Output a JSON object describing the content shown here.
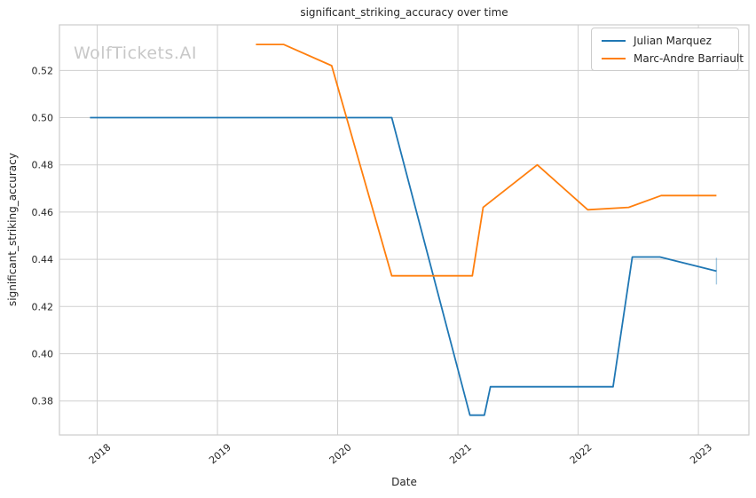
{
  "watermark": "WolfTickets.AI",
  "chart_data": {
    "type": "line",
    "title": "significant_striking_accuracy over time",
    "xlabel": "Date",
    "ylabel": "significant_striking_accuracy",
    "grid": true,
    "legend_position": "upper right",
    "xlim": [
      2017.686,
      2023.42
    ],
    "ylim": [
      0.3656,
      0.5393
    ],
    "x_ticks": [
      2018,
      2019,
      2020,
      2021,
      2022,
      2023
    ],
    "x_tick_labels": [
      "2018",
      "2019",
      "2020",
      "2021",
      "2022",
      "2023"
    ],
    "y_ticks": [
      0.38,
      0.4,
      0.42,
      0.44,
      0.46,
      0.48,
      0.5,
      0.52
    ],
    "y_tick_labels": [
      "0.38",
      "0.40",
      "0.42",
      "0.44",
      "0.46",
      "0.48",
      "0.50",
      "0.52"
    ],
    "series": [
      {
        "name": "Julian Marquez",
        "color": "#1f77b4",
        "end_marker": "vline",
        "points": [
          [
            2017.94,
            0.5
          ],
          [
            2020.45,
            0.5
          ],
          [
            2021.1,
            0.374
          ],
          [
            2021.22,
            0.374
          ],
          [
            2021.27,
            0.386
          ],
          [
            2022.29,
            0.386
          ],
          [
            2022.45,
            0.441
          ],
          [
            2022.68,
            0.441
          ],
          [
            2023.15,
            0.435
          ]
        ]
      },
      {
        "name": "Marc-Andre Barriault",
        "color": "#ff7f0e",
        "end_marker": null,
        "points": [
          [
            2019.32,
            0.531
          ],
          [
            2019.55,
            0.531
          ],
          [
            2019.95,
            0.522
          ],
          [
            2020.45,
            0.433
          ],
          [
            2021.12,
            0.433
          ],
          [
            2021.21,
            0.462
          ],
          [
            2021.66,
            0.48
          ],
          [
            2022.08,
            0.461
          ],
          [
            2022.42,
            0.462
          ],
          [
            2022.69,
            0.467
          ],
          [
            2023.15,
            0.467
          ]
        ]
      }
    ],
    "style": {
      "grid_color": "#cfcfcf",
      "spine_color": "#cccccc",
      "tick_label_color": "#262626",
      "background": "#ffffff"
    }
  }
}
